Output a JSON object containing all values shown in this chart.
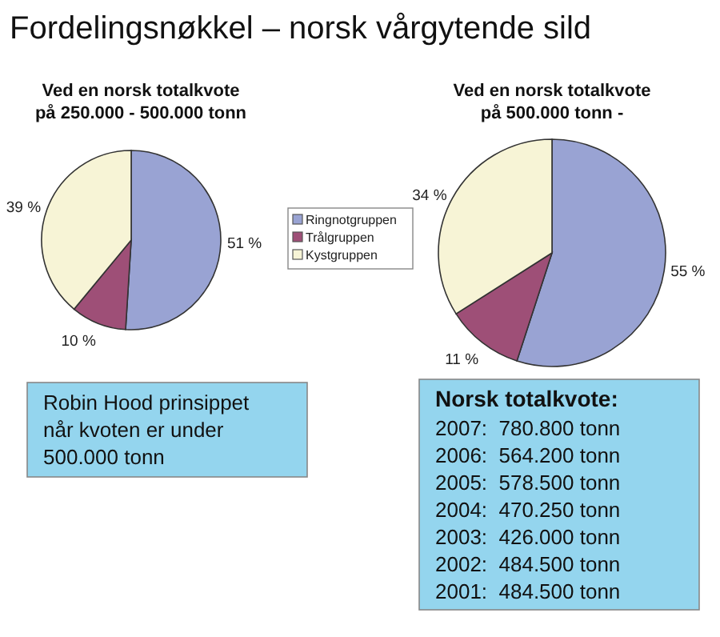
{
  "chart_data": [
    {
      "type": "pie",
      "title": "Fordelingsnøkkel – norsk vårgytende sild",
      "subtitle": "Ved en norsk totalkvote på 250.000 - 500.000 tonn",
      "categories": [
        "Ringnotgruppen",
        "Trålgruppen",
        "Kystgruppen"
      ],
      "values": [
        51,
        10,
        39
      ],
      "value_labels": [
        "51 %",
        "10 %",
        "39 %"
      ],
      "colors": [
        "#99a3d3",
        "#9e4f77",
        "#f7f4d6"
      ],
      "legend": "right",
      "annotations": [
        "Robin Hood prinsippet når kvoten er under 500.000 tonn"
      ]
    },
    {
      "type": "pie",
      "title": "Ved en norsk totalkvote på 500.000 tonn -",
      "categories": [
        null,
        null,
        null
      ],
      "values": [
        55,
        11,
        34
      ],
      "value_labels": [
        "55 %",
        "11 %",
        "34 %"
      ],
      "colors": [
        "#99a3d3",
        "#9e4f77",
        "#f7f4d6"
      ]
    },
    {
      "type": "other",
      "title": "Norsk totalkvote:",
      "annotations": [
        "2007:  780.800 tonn",
        "2006:  564.200 tonn",
        "2005:  578.500 tonn",
        "2004:  470.250 tonn",
        "2003:  426.000 tonn",
        "2002:  484.500 tonn",
        "2001:  484.500 tonn"
      ]
    }
  ]
}
